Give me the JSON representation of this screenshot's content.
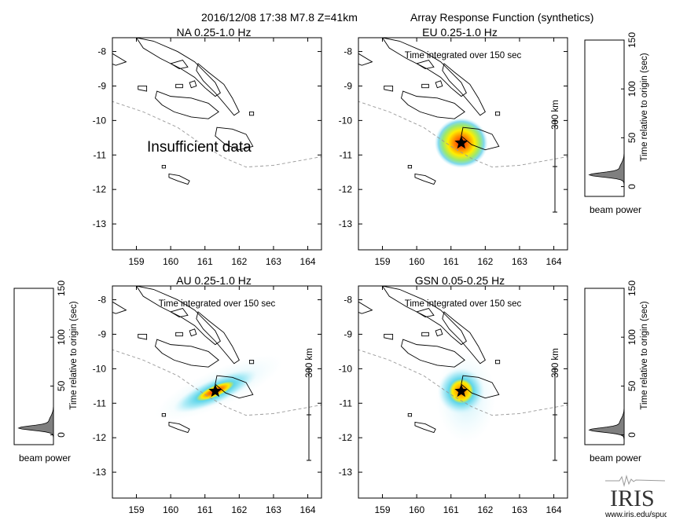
{
  "header": {
    "event_label": "2016/12/08 17:38  M7.8  Z=41km",
    "title": "Array Response Function (synthetics)"
  },
  "axes": {
    "lon_ticks": [
      "159",
      "160",
      "161",
      "162",
      "163",
      "164"
    ],
    "lat_ticks": [
      "-8",
      "-9",
      "-10",
      "-11",
      "-12",
      "-13"
    ],
    "lon_range": [
      158.3,
      164.4
    ],
    "lat_range": [
      -7.6,
      -13.75
    ]
  },
  "legend_texts": {
    "integrated": "Time integrated over 150 sec",
    "scale": "300 km",
    "beam_power": "beam power",
    "time_axis_label": "Time relative to origin (sec)",
    "time_ticks": [
      "150",
      "100",
      "50",
      "0"
    ]
  },
  "colors": {
    "coast": "#000000",
    "trench": "#999999",
    "star": "#000000",
    "beam_core": "#ff1a00",
    "beam_mid": "#ffee00",
    "beam_edge": "#8fe3f2",
    "beam_fill": "#7f7f7f"
  },
  "chart_data": [
    {
      "type": "heatmap",
      "title": "NA  0.25-1.0 Hz",
      "annotation": "Insufficient data",
      "xlim": [
        158.3,
        164.4
      ],
      "ylim": [
        -13.75,
        -7.6
      ],
      "epicenter": null,
      "beam_power_trace": null
    },
    {
      "type": "heatmap",
      "title": "EU  0.25-1.0 Hz",
      "annotation": "Time integrated over 150 sec",
      "xlim": [
        158.3,
        164.4
      ],
      "ylim": [
        -13.75,
        -7.6
      ],
      "epicenter": [
        161.3,
        -10.65
      ],
      "beam_power_trace": {
        "peak_time": 12,
        "ylim": [
          -10,
          150
        ]
      }
    },
    {
      "type": "heatmap",
      "title": "AU  0.25-1.0 Hz",
      "annotation": "Time integrated over 150 sec",
      "xlim": [
        158.3,
        164.4
      ],
      "ylim": [
        -13.75,
        -7.6
      ],
      "epicenter": [
        161.3,
        -10.65
      ],
      "beam_power_trace": {
        "peak_time": 7,
        "ylim": [
          -10,
          150
        ]
      }
    },
    {
      "type": "heatmap",
      "title": "GSN  0.05-0.25 Hz",
      "annotation": "Time integrated over 150 sec",
      "xlim": [
        158.3,
        164.4
      ],
      "ylim": [
        -13.75,
        -7.6
      ],
      "epicenter": [
        161.3,
        -10.65
      ],
      "beam_power_trace": {
        "peak_time": 5,
        "ylim": [
          -10,
          150
        ]
      }
    }
  ],
  "footer": {
    "logo_text": "IRIS",
    "url": "www.iris.edu/spud"
  }
}
